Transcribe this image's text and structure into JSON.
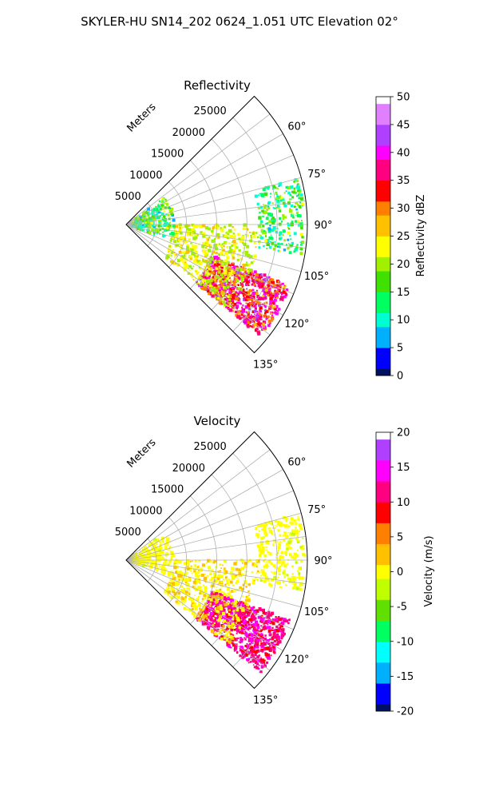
{
  "figure": {
    "suptitle": "SKYLER-HU  SN14_202  0624_1.051 UTC Elevation 02°"
  },
  "chart_data": [
    {
      "type": "polar-sector",
      "title": "Reflectivity",
      "radial_label": "Meters",
      "theta_range_deg": [
        45,
        135
      ],
      "r_range_m": [
        0,
        30000
      ],
      "radial_ticks": [
        "5000",
        "10000",
        "15000",
        "20000",
        "25000"
      ],
      "radial_tick_values": [
        5000,
        10000,
        15000,
        20000,
        25000
      ],
      "angle_ticks": [
        "60°",
        "75°",
        "90°",
        "105°",
        "120°",
        "135°"
      ],
      "angle_tick_values": [
        60,
        75,
        90,
        105,
        120,
        135
      ],
      "grid": true,
      "colorbar": {
        "label": "Reflectivity dBZ",
        "range": [
          0,
          50
        ],
        "ticks": [
          "0",
          "5",
          "10",
          "15",
          "20",
          "25",
          "30",
          "35",
          "40",
          "45",
          "50"
        ],
        "tick_values": [
          0,
          5,
          10,
          15,
          20,
          25,
          30,
          35,
          40,
          45,
          50
        ],
        "stops": [
          "#001060",
          "#0000ff",
          "#00b0ff",
          "#00ffd0",
          "#00ff60",
          "#40e000",
          "#a0f000",
          "#ffff00",
          "#ffc000",
          "#ff8000",
          "#ff0000",
          "#ff0080",
          "#ff00ff",
          "#b040ff",
          "#e080ff",
          "#ffffff"
        ]
      },
      "echo_regions": [
        {
          "theta": [
            110,
            130
          ],
          "r": [
            15000,
            29000
          ],
          "value": "28–40 dBZ"
        },
        {
          "theta": [
            90,
            130
          ],
          "r": [
            8000,
            22000
          ],
          "value": "18–25 dBZ"
        },
        {
          "theta": [
            75,
            100
          ],
          "r": [
            22000,
            29500
          ],
          "value": "15–25 dBZ"
        },
        {
          "theta": [
            55,
            110
          ],
          "r": [
            1000,
            8000
          ],
          "value": "8–15 dBZ"
        }
      ]
    },
    {
      "type": "polar-sector",
      "title": "Velocity",
      "radial_label": "Meters",
      "theta_range_deg": [
        45,
        135
      ],
      "r_range_m": [
        0,
        30000
      ],
      "radial_ticks": [
        "5000",
        "10000",
        "15000",
        "20000",
        "25000"
      ],
      "radial_tick_values": [
        5000,
        10000,
        15000,
        20000,
        25000
      ],
      "angle_ticks": [
        "60°",
        "75°",
        "90°",
        "105°",
        "120°",
        "135°"
      ],
      "angle_tick_values": [
        60,
        75,
        90,
        105,
        120,
        135
      ],
      "grid": true,
      "colorbar": {
        "label": "Velocity (m/s)",
        "range": [
          -20,
          20
        ],
        "ticks": [
          "-20",
          "-15",
          "-10",
          "-5",
          "0",
          "5",
          "10",
          "15",
          "20"
        ],
        "tick_values": [
          -20,
          -15,
          -10,
          -5,
          0,
          5,
          10,
          15,
          20
        ],
        "stops": [
          "#001060",
          "#0000ff",
          "#00b0ff",
          "#00ffff",
          "#00ff60",
          "#60e000",
          "#c0ff00",
          "#ffff00",
          "#ffc000",
          "#ff8000",
          "#ff0000",
          "#ff0080",
          "#ff00ff",
          "#b040ff",
          "#ffffff"
        ]
      },
      "echo_regions": [
        {
          "theta": [
            110,
            130
          ],
          "r": [
            15000,
            29000
          ],
          "value": "8–15 m/s"
        },
        {
          "theta": [
            90,
            130
          ],
          "r": [
            8000,
            22000
          ],
          "value": "0–5 m/s"
        },
        {
          "theta": [
            75,
            100
          ],
          "r": [
            22000,
            29500
          ],
          "value": "0–5 m/s"
        },
        {
          "theta": [
            55,
            110
          ],
          "r": [
            1000,
            8000
          ],
          "value": "-2–2 m/s"
        }
      ]
    }
  ]
}
